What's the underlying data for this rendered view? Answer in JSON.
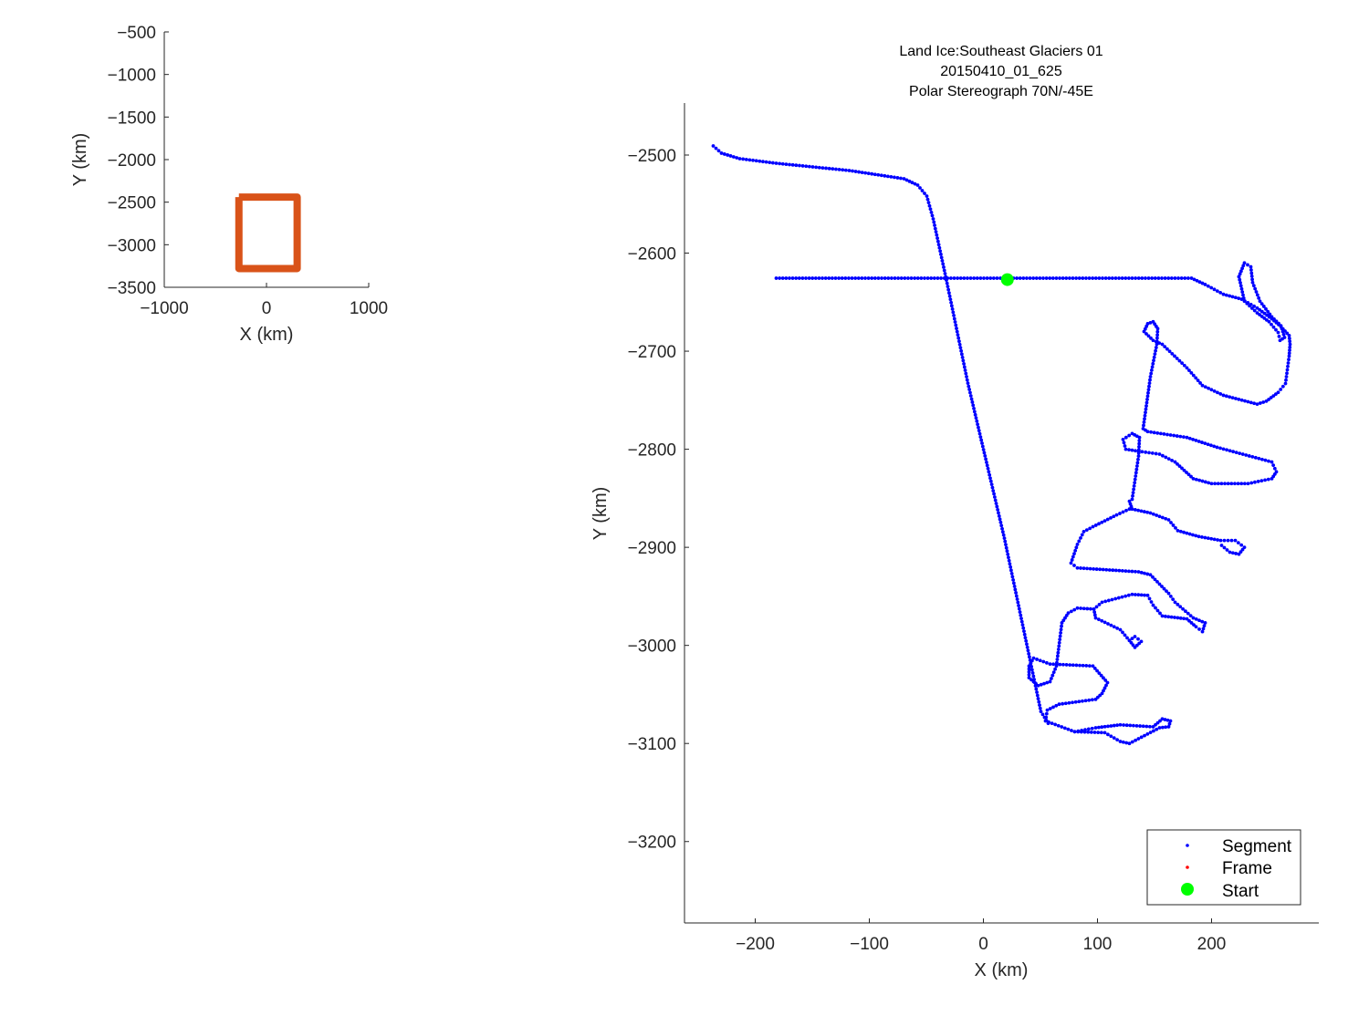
{
  "chart_data": [
    {
      "type": "line",
      "panel": "overview",
      "xlabel": "X (km)",
      "ylabel": "Y (km)",
      "xlim": [
        -1000,
        1000
      ],
      "ylim": [
        -3500,
        -500
      ],
      "xticks": [
        -1000,
        0,
        1000
      ],
      "yticks": [
        -500,
        -1000,
        -1500,
        -2000,
        -2500,
        -3000,
        -3500
      ],
      "grid": false,
      "color": "#D95319",
      "outline": [
        [
          -270,
          -2440
        ],
        [
          300,
          -2440
        ],
        [
          300,
          -3280
        ],
        [
          -270,
          -3280
        ],
        [
          -270,
          -2440
        ]
      ]
    },
    {
      "type": "scatter",
      "panel": "detail",
      "title": [
        "Land Ice:Southeast Glaciers 01",
        "20150410_01_625",
        "Polar Stereograph 70N/-45E"
      ],
      "xlabel": "X (km)",
      "ylabel": "Y (km)",
      "xlim": [
        -262,
        294
      ],
      "ylim": [
        -3283,
        -2447
      ],
      "xticks": [
        -200,
        -100,
        0,
        100,
        200
      ],
      "yticks": [
        -2500,
        -2600,
        -2700,
        -2800,
        -2900,
        -3000,
        -3100,
        -3200
      ],
      "grid": false,
      "legend": {
        "placement": "bottom-right",
        "entries": [
          {
            "label": "Segment",
            "color": "#0000FF",
            "marker": "dot"
          },
          {
            "label": "Frame",
            "color": "#FF0000",
            "marker": "dot"
          },
          {
            "label": "Start",
            "color": "#00FF00",
            "marker": "hexagram"
          }
        ]
      },
      "start": [
        21,
        -2627
      ],
      "segment_tracks": [
        [
          [
            -236.8,
            -2490.7
          ],
          [
            -229.6,
            -2498.1
          ],
          [
            -213.6,
            -2503.7
          ],
          [
            -181.6,
            -2508.4
          ],
          [
            -117.6,
            -2515.8
          ],
          [
            -69.6,
            -2524.2
          ],
          [
            -57.6,
            -2530.7
          ],
          [
            -49.6,
            -2541.9
          ],
          [
            -44,
            -2565.1
          ],
          [
            -33.6,
            -2620.9
          ],
          [
            -13.6,
            -2732.6
          ],
          [
            18.4,
            -2890.7
          ],
          [
            50.4,
            -3067.4
          ],
          [
            56.8,
            -3079.5
          ]
        ],
        [
          [
            -181.6,
            -2625.6
          ],
          [
            182.4,
            -2625.6
          ],
          [
            194.4,
            -2632
          ],
          [
            210.4,
            -2642
          ],
          [
            226.4,
            -2647
          ],
          [
            240,
            -2656
          ],
          [
            252.8,
            -2667
          ],
          [
            260.8,
            -2675
          ],
          [
            268,
            -2684
          ],
          [
            268.8,
            -2693
          ],
          [
            268,
            -2705
          ],
          [
            264.8,
            -2733
          ],
          [
            258.4,
            -2742
          ],
          [
            248,
            -2751
          ],
          [
            240,
            -2754
          ],
          [
            210.4,
            -2745
          ],
          [
            192,
            -2735
          ],
          [
            178.4,
            -2717
          ],
          [
            156.8,
            -2693
          ],
          [
            148.8,
            -2689
          ],
          [
            140.8,
            -2680
          ],
          [
            144,
            -2672
          ],
          [
            148.8,
            -2670
          ],
          [
            152.8,
            -2677
          ],
          [
            152,
            -2693
          ],
          [
            146.4,
            -2726
          ],
          [
            140,
            -2779
          ],
          [
            144,
            -2782
          ],
          [
            178.4,
            -2788
          ],
          [
            204.8,
            -2798
          ],
          [
            252.8,
            -2813
          ],
          [
            256.8,
            -2823
          ],
          [
            252.8,
            -2830
          ],
          [
            232,
            -2835
          ],
          [
            200,
            -2835
          ],
          [
            184,
            -2830
          ],
          [
            168,
            -2813
          ],
          [
            154.4,
            -2805
          ],
          [
            136,
            -2802
          ],
          [
            124.8,
            -2800
          ],
          [
            122.4,
            -2790
          ],
          [
            130.4,
            -2784
          ],
          [
            136.8,
            -2788
          ],
          [
            136,
            -2807
          ],
          [
            130.4,
            -2851
          ],
          [
            128,
            -2853
          ],
          [
            130.4,
            -2861
          ],
          [
            146.4,
            -2865
          ],
          [
            162.4,
            -2872
          ],
          [
            170.4,
            -2883
          ],
          [
            188.8,
            -2889
          ],
          [
            208,
            -2893
          ],
          [
            220.8,
            -2893
          ],
          [
            228.8,
            -2900
          ],
          [
            224,
            -2907
          ],
          [
            216,
            -2905
          ],
          [
            208.8,
            -2898
          ]
        ],
        [
          [
            224,
            -2624
          ],
          [
            228.8,
            -2610
          ],
          [
            234.4,
            -2614
          ],
          [
            236,
            -2630
          ],
          [
            242.4,
            -2649
          ],
          [
            252.8,
            -2665
          ],
          [
            260.8,
            -2674
          ],
          [
            264,
            -2686
          ],
          [
            260,
            -2689
          ],
          [
            258.4,
            -2681
          ],
          [
            250.4,
            -2670
          ],
          [
            240,
            -2661
          ],
          [
            228.8,
            -2649
          ],
          [
            224,
            -2624
          ]
        ],
        [
          [
            128,
            -2861
          ],
          [
            116.8,
            -2867
          ],
          [
            96,
            -2879
          ],
          [
            88,
            -2884
          ],
          [
            82.4,
            -2897
          ],
          [
            76.8,
            -2916
          ],
          [
            82.4,
            -2921
          ],
          [
            136,
            -2925
          ],
          [
            146.4,
            -2928
          ],
          [
            162.4,
            -2947
          ],
          [
            168,
            -2956
          ],
          [
            184,
            -2972
          ],
          [
            194.4,
            -2977
          ],
          [
            192,
            -2986
          ],
          [
            186.4,
            -2981
          ],
          [
            178.4,
            -2973
          ],
          [
            156.8,
            -2970
          ],
          [
            148.8,
            -2959
          ],
          [
            144,
            -2949
          ],
          [
            130.4,
            -2948
          ],
          [
            104,
            -2956
          ],
          [
            96.8,
            -2963
          ],
          [
            98.4,
            -2972
          ],
          [
            120,
            -2984
          ],
          [
            128,
            -2995
          ],
          [
            132.8,
            -3002
          ],
          [
            138.4,
            -2996
          ],
          [
            132.8,
            -2991
          ],
          [
            128,
            -2995
          ]
        ],
        [
          [
            96.8,
            -2963
          ],
          [
            82.4,
            -2962
          ],
          [
            74.4,
            -2967
          ],
          [
            68.8,
            -2977
          ],
          [
            64,
            -3021
          ],
          [
            58.4,
            -3037
          ],
          [
            48,
            -3041
          ],
          [
            40,
            -3033
          ],
          [
            40,
            -3021
          ],
          [
            44,
            -3013
          ],
          [
            58.4,
            -3019
          ],
          [
            96,
            -3021
          ],
          [
            108.8,
            -3038
          ],
          [
            104,
            -3049
          ],
          [
            98.4,
            -3055
          ],
          [
            66.4,
            -3060
          ],
          [
            56,
            -3066
          ],
          [
            54.4,
            -3077
          ],
          [
            80,
            -3088
          ],
          [
            98.4,
            -3084
          ],
          [
            120,
            -3081
          ],
          [
            148.8,
            -3083
          ],
          [
            156.8,
            -3075
          ],
          [
            164,
            -3077
          ],
          [
            162.4,
            -3083
          ],
          [
            154.4,
            -3084
          ],
          [
            128,
            -3100
          ],
          [
            120,
            -3098
          ],
          [
            106.4,
            -3089
          ],
          [
            80,
            -3088
          ]
        ]
      ]
    }
  ]
}
